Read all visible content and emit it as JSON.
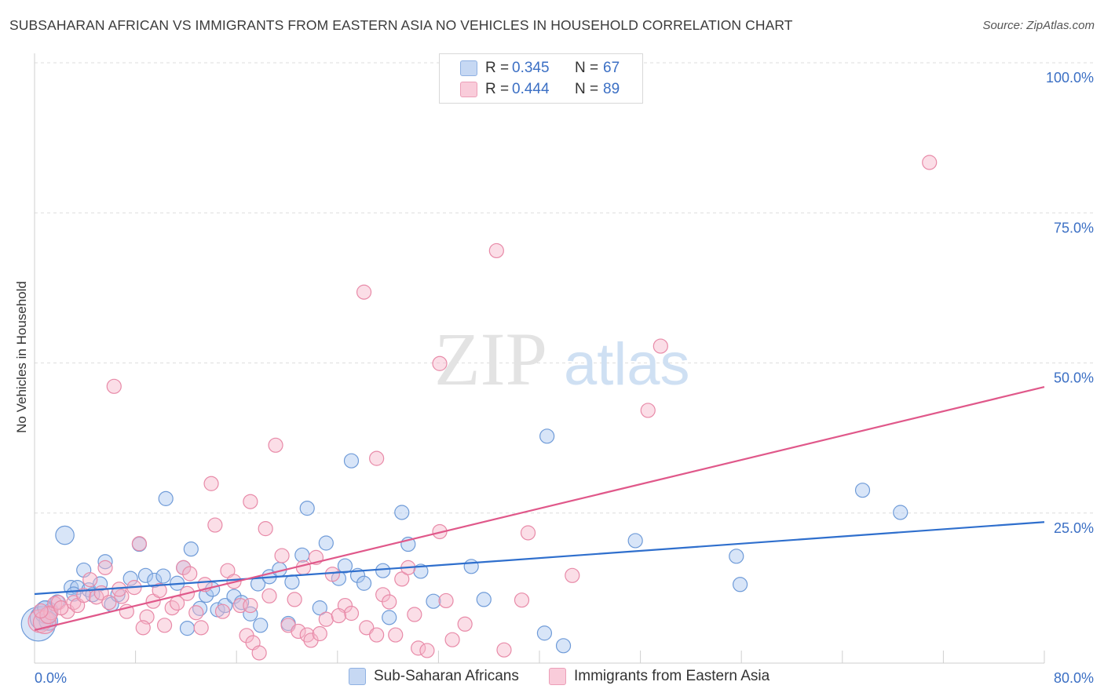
{
  "title": "SUBSAHARAN AFRICAN VS IMMIGRANTS FROM EASTERN ASIA NO VEHICLES IN HOUSEHOLD CORRELATION CHART",
  "source": "Source: ZipAtlas.com",
  "watermark": {
    "zip": "ZIP",
    "atlas": "atlas"
  },
  "legend_stats": [
    {
      "r_label": "R = ",
      "r_value": "0.345",
      "n_label": "N = ",
      "n_value": "67"
    },
    {
      "r_label": "R = ",
      "r_value": "0.444",
      "n_label": "N = ",
      "n_value": "89"
    }
  ],
  "colors": {
    "blue_fill": "#a9c6ef",
    "blue_stroke": "#6f9bd8",
    "blue_line": "#2f6fcd",
    "pink_fill": "#f6b6ca",
    "pink_stroke": "#e88aa8",
    "pink_line": "#e0588a",
    "axis_label": "#3b6fc4",
    "grid": "#dedede"
  },
  "chart_data": {
    "type": "scatter",
    "title": "SUBSAHARAN AFRICAN VS IMMIGRANTS FROM EASTERN ASIA NO VEHICLES IN HOUSEHOLD CORRELATION CHART",
    "xlabel": "",
    "ylabel": "No Vehicles in Household",
    "xlim": [
      0,
      80
    ],
    "ylim": [
      0,
      100
    ],
    "x_tick_labels": [
      "0.0%",
      "80.0%"
    ],
    "y_tick_labels": [
      "25.0%",
      "50.0%",
      "75.0%",
      "100.0%"
    ],
    "y_ticks": [
      25,
      50,
      75,
      100
    ],
    "grid": true,
    "legend_position": "bottom-center",
    "series": [
      {
        "name": "Sub-Saharan Africans",
        "color": "#a9c6ef",
        "r": 0.345,
        "n": 67,
        "trend": {
          "x": [
            0,
            80
          ],
          "y": [
            11.5,
            23.5
          ]
        },
        "points": [
          [
            0.3,
            6.5,
            2.4
          ],
          [
            0.6,
            7.5,
            1.7
          ],
          [
            0.9,
            8.5,
            1.6
          ],
          [
            1.3,
            8.8,
            1
          ],
          [
            1.8,
            10.2,
            1
          ],
          [
            2.4,
            21.3,
            1.3
          ],
          [
            2.9,
            12.6,
            1
          ],
          [
            3.4,
            12.6,
            1
          ],
          [
            3.9,
            15.5,
            1
          ],
          [
            4.3,
            12.2,
            1
          ],
          [
            4.6,
            11.4,
            1
          ],
          [
            5.2,
            13.2,
            1
          ],
          [
            5.6,
            16.9,
            1
          ],
          [
            6.1,
            9.8,
            1
          ],
          [
            6.6,
            11.4,
            1
          ],
          [
            7.6,
            14.1,
            1
          ],
          [
            8.3,
            19.8,
            1
          ],
          [
            8.8,
            14.6,
            1
          ],
          [
            9.5,
            13.8,
            1
          ],
          [
            10.2,
            14.5,
            1
          ],
          [
            10.4,
            27.4,
            1
          ],
          [
            11.3,
            13.3,
            1
          ],
          [
            11.8,
            15.9,
            1
          ],
          [
            12.1,
            5.8,
            1
          ],
          [
            12.4,
            19.0,
            1
          ],
          [
            13.1,
            9.1,
            1
          ],
          [
            13.6,
            11.3,
            1
          ],
          [
            14.1,
            12.3,
            1
          ],
          [
            14.5,
            8.9,
            1
          ],
          [
            15.1,
            9.6,
            1
          ],
          [
            15.8,
            11.1,
            1
          ],
          [
            16.4,
            10.1,
            1
          ],
          [
            17.1,
            8.2,
            1
          ],
          [
            17.7,
            13.2,
            1
          ],
          [
            17.9,
            6.3,
            1
          ],
          [
            18.6,
            14.4,
            1
          ],
          [
            19.4,
            15.6,
            1
          ],
          [
            20.4,
            13.5,
            1
          ],
          [
            20.1,
            6.6,
            1
          ],
          [
            21.2,
            18.0,
            1
          ],
          [
            21.6,
            25.8,
            1
          ],
          [
            22.6,
            9.2,
            1
          ],
          [
            23.1,
            20.0,
            1
          ],
          [
            24.1,
            14.1,
            1
          ],
          [
            24.6,
            16.2,
            1
          ],
          [
            25.1,
            33.7,
            1
          ],
          [
            25.6,
            14.6,
            1
          ],
          [
            26.1,
            13.3,
            1
          ],
          [
            27.6,
            15.4,
            1
          ],
          [
            28.1,
            7.6,
            1
          ],
          [
            29.1,
            25.1,
            1
          ],
          [
            29.6,
            19.8,
            1
          ],
          [
            30.6,
            15.3,
            1
          ],
          [
            31.6,
            10.3,
            1
          ],
          [
            34.6,
            16.1,
            1
          ],
          [
            35.6,
            10.6,
            1
          ],
          [
            40.6,
            37.8,
            1
          ],
          [
            40.4,
            5.0,
            1
          ],
          [
            41.9,
            2.9,
            1
          ],
          [
            47.6,
            20.4,
            1
          ],
          [
            55.6,
            17.8,
            1
          ],
          [
            55.9,
            13.1,
            1
          ],
          [
            65.6,
            28.8,
            1
          ],
          [
            68.6,
            25.1,
            1
          ],
          [
            1.1,
            7.0,
            1.3
          ],
          [
            0.8,
            9.2,
            1
          ],
          [
            3.1,
            11.5,
            1
          ]
        ]
      },
      {
        "name": "Immigrants from Eastern Asia",
        "color": "#f6b6ca",
        "r": 0.444,
        "n": 89,
        "trend": {
          "x": [
            0,
            80
          ],
          "y": [
            5.5,
            46.0
          ]
        },
        "points": [
          [
            0.4,
            7.0,
            1.6
          ],
          [
            0.8,
            6.8,
            1.6
          ],
          [
            1.3,
            8.4,
            1
          ],
          [
            1.6,
            9.9,
            1
          ],
          [
            1.9,
            10.1,
            1
          ],
          [
            2.6,
            8.6,
            1
          ],
          [
            3.1,
            10.1,
            1
          ],
          [
            3.4,
            9.6,
            1
          ],
          [
            3.9,
            11.3,
            1
          ],
          [
            4.4,
            13.9,
            1
          ],
          [
            4.9,
            11.0,
            1
          ],
          [
            5.3,
            11.7,
            1
          ],
          [
            5.6,
            15.9,
            1
          ],
          [
            5.9,
            10.1,
            1
          ],
          [
            6.3,
            46.1,
            1
          ],
          [
            6.9,
            11.1,
            1
          ],
          [
            7.3,
            8.6,
            1
          ],
          [
            7.9,
            12.6,
            1
          ],
          [
            8.3,
            19.9,
            1
          ],
          [
            8.9,
            7.7,
            1
          ],
          [
            9.4,
            10.3,
            1
          ],
          [
            9.9,
            12.1,
            1
          ],
          [
            10.3,
            6.3,
            1
          ],
          [
            10.9,
            9.2,
            1
          ],
          [
            11.3,
            10.0,
            1
          ],
          [
            11.8,
            15.9,
            1
          ],
          [
            12.3,
            14.9,
            1
          ],
          [
            12.8,
            8.4,
            1
          ],
          [
            13.2,
            5.9,
            1
          ],
          [
            13.5,
            13.1,
            1
          ],
          [
            14.0,
            29.9,
            1
          ],
          [
            14.3,
            23.0,
            1
          ],
          [
            14.9,
            8.6,
            1
          ],
          [
            15.3,
            15.4,
            1
          ],
          [
            15.8,
            13.6,
            1
          ],
          [
            16.3,
            9.6,
            1
          ],
          [
            16.8,
            4.6,
            1
          ],
          [
            17.1,
            26.9,
            1
          ],
          [
            17.3,
            3.4,
            1
          ],
          [
            17.8,
            1.7,
            1
          ],
          [
            18.3,
            22.4,
            1
          ],
          [
            18.6,
            11.2,
            1
          ],
          [
            19.1,
            36.3,
            1
          ],
          [
            19.6,
            17.9,
            1
          ],
          [
            20.1,
            6.3,
            1
          ],
          [
            20.6,
            10.6,
            1
          ],
          [
            20.9,
            5.3,
            1
          ],
          [
            21.3,
            15.9,
            1
          ],
          [
            21.6,
            4.7,
            1
          ],
          [
            21.9,
            3.8,
            1
          ],
          [
            22.3,
            17.6,
            1
          ],
          [
            22.6,
            4.9,
            1
          ],
          [
            23.1,
            7.3,
            1
          ],
          [
            23.6,
            14.8,
            1
          ],
          [
            24.6,
            9.6,
            1
          ],
          [
            25.1,
            8.3,
            1
          ],
          [
            26.1,
            61.8,
            1
          ],
          [
            26.3,
            5.9,
            1
          ],
          [
            27.1,
            34.1,
            1
          ],
          [
            27.6,
            11.4,
            1
          ],
          [
            28.1,
            10.2,
            1
          ],
          [
            28.6,
            4.7,
            1
          ],
          [
            29.1,
            14.0,
            1
          ],
          [
            29.6,
            15.9,
            1
          ],
          [
            30.1,
            8.1,
            1
          ],
          [
            30.4,
            2.5,
            1
          ],
          [
            31.1,
            2.1,
            1
          ],
          [
            32.1,
            21.9,
            1
          ],
          [
            32.6,
            10.4,
            1
          ],
          [
            33.1,
            3.9,
            1
          ],
          [
            34.1,
            6.5,
            1
          ],
          [
            36.6,
            68.7,
            1
          ],
          [
            37.2,
            2.2,
            1
          ],
          [
            38.6,
            10.5,
            1
          ],
          [
            39.1,
            21.7,
            1
          ],
          [
            42.6,
            14.6,
            1
          ],
          [
            48.6,
            42.1,
            1
          ],
          [
            49.6,
            52.8,
            1
          ],
          [
            70.9,
            83.4,
            1
          ],
          [
            32.1,
            49.9,
            1
          ],
          [
            1.1,
            8.0,
            1.2
          ],
          [
            0.5,
            8.7,
            1
          ],
          [
            2.1,
            9.2,
            1
          ],
          [
            6.7,
            12.3,
            1
          ],
          [
            17.1,
            9.6,
            1
          ],
          [
            24.1,
            7.9,
            1
          ],
          [
            27.1,
            4.7,
            1
          ],
          [
            12.1,
            11.6,
            1
          ],
          [
            8.6,
            5.9,
            1
          ]
        ]
      }
    ]
  }
}
